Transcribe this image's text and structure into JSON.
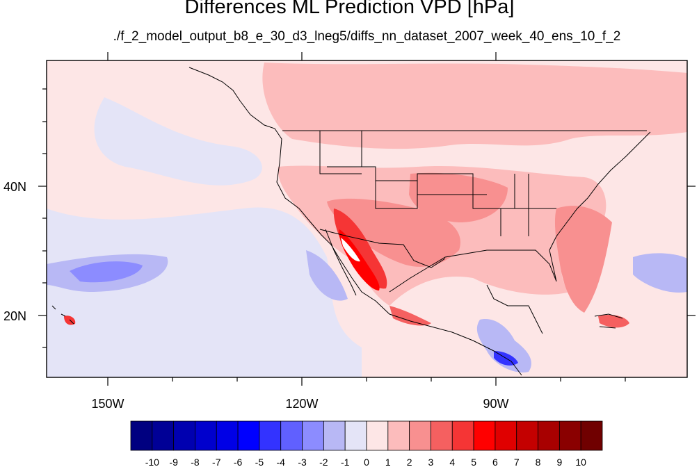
{
  "title": "Differences ML Prediction VPD [hPa]",
  "subtitle": "./f_2_model_output_b8_e_30_d3_lneg5/diffs_nn_dataset_2007_week_40_ens_10_f_2",
  "map": {
    "x_ticks": [
      "150W",
      "120W",
      "90W"
    ],
    "y_ticks": [
      "40N",
      "20N"
    ]
  },
  "colorbar": {
    "labels": [
      "-10",
      "-9",
      "-8",
      "-7",
      "-6",
      "-5",
      "-4",
      "-3",
      "-2",
      "-1",
      "0",
      "1",
      "2",
      "3",
      "4",
      "5",
      "6",
      "7",
      "8",
      "9",
      "10"
    ],
    "colors": [
      "#000080",
      "#000096",
      "#0000b0",
      "#0000cd",
      "#0000e6",
      "#0000ff",
      "#3333ff",
      "#6060ff",
      "#8c8cff",
      "#b8b8f5",
      "#e4e4f7",
      "#fde6e6",
      "#fcbcbc",
      "#f89090",
      "#f56060",
      "#f53535",
      "#ff0000",
      "#e00000",
      "#c40000",
      "#a80000",
      "#8a0000",
      "#700000"
    ]
  }
}
